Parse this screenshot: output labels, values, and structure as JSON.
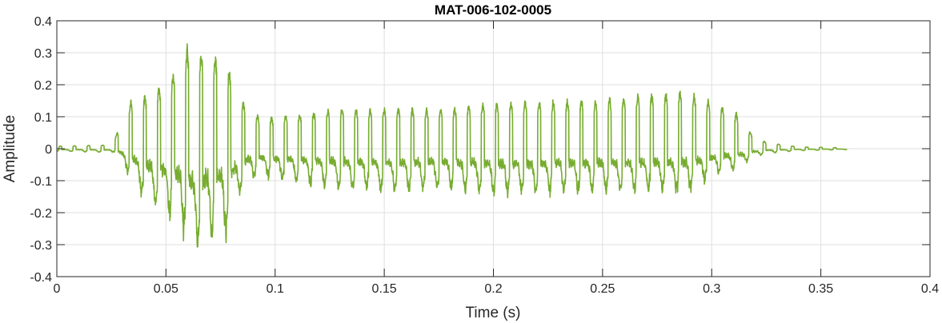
{
  "chart_data": {
    "type": "line",
    "title": "MAT-006-102-0005",
    "xlabel": "Time (s)",
    "ylabel": "Amplitude",
    "xlim": [
      0,
      0.4
    ],
    "ylim": [
      -0.4,
      0.4
    ],
    "grid": true,
    "xticks": [
      "0",
      "0.05",
      "0.1",
      "0.15",
      "0.2",
      "0.25",
      "0.3",
      "0.35",
      "0.4"
    ],
    "yticks": [
      "0.4",
      "0.3",
      "0.2",
      "0.1",
      "0",
      "-0.1",
      "-0.2",
      "-0.3",
      "-0.4"
    ],
    "series": [
      {
        "color": "#77AC30",
        "envelope": [
          {
            "x": 0.0,
            "max": 0.008,
            "min": -0.008
          },
          {
            "x": 0.024,
            "max": 0.012,
            "min": -0.012
          },
          {
            "x": 0.027,
            "max": 0.045,
            "min": -0.01
          },
          {
            "x": 0.031,
            "max": 0.095,
            "min": -0.06
          },
          {
            "x": 0.034,
            "max": 0.16,
            "min": -0.1
          },
          {
            "x": 0.04,
            "max": 0.17,
            "min": -0.16
          },
          {
            "x": 0.047,
            "max": 0.2,
            "min": -0.2
          },
          {
            "x": 0.052,
            "max": 0.22,
            "min": -0.23
          },
          {
            "x": 0.057,
            "max": 0.31,
            "min": -0.25
          },
          {
            "x": 0.061,
            "max": 0.34,
            "min": -0.33
          },
          {
            "x": 0.065,
            "max": 0.32,
            "min": -0.33
          },
          {
            "x": 0.07,
            "max": 0.3,
            "min": -0.3
          },
          {
            "x": 0.074,
            "max": 0.3,
            "min": -0.28
          },
          {
            "x": 0.078,
            "max": 0.27,
            "min": -0.28
          },
          {
            "x": 0.083,
            "max": 0.18,
            "min": -0.16
          },
          {
            "x": 0.088,
            "max": 0.12,
            "min": -0.1
          },
          {
            "x": 0.095,
            "max": 0.1,
            "min": -0.09
          },
          {
            "x": 0.11,
            "max": 0.11,
            "min": -0.11
          },
          {
            "x": 0.13,
            "max": 0.13,
            "min": -0.13
          },
          {
            "x": 0.15,
            "max": 0.13,
            "min": -0.14
          },
          {
            "x": 0.18,
            "max": 0.13,
            "min": -0.13
          },
          {
            "x": 0.2,
            "max": 0.15,
            "min": -0.15
          },
          {
            "x": 0.25,
            "max": 0.16,
            "min": -0.14
          },
          {
            "x": 0.29,
            "max": 0.19,
            "min": -0.14
          },
          {
            "x": 0.3,
            "max": 0.15,
            "min": -0.09
          },
          {
            "x": 0.313,
            "max": 0.11,
            "min": -0.06
          },
          {
            "x": 0.318,
            "max": 0.05,
            "min": -0.03
          },
          {
            "x": 0.325,
            "max": 0.02,
            "min": -0.015
          },
          {
            "x": 0.34,
            "max": 0.006,
            "min": -0.006
          },
          {
            "x": 0.362,
            "max": 0.003,
            "min": -0.003
          }
        ]
      }
    ]
  }
}
